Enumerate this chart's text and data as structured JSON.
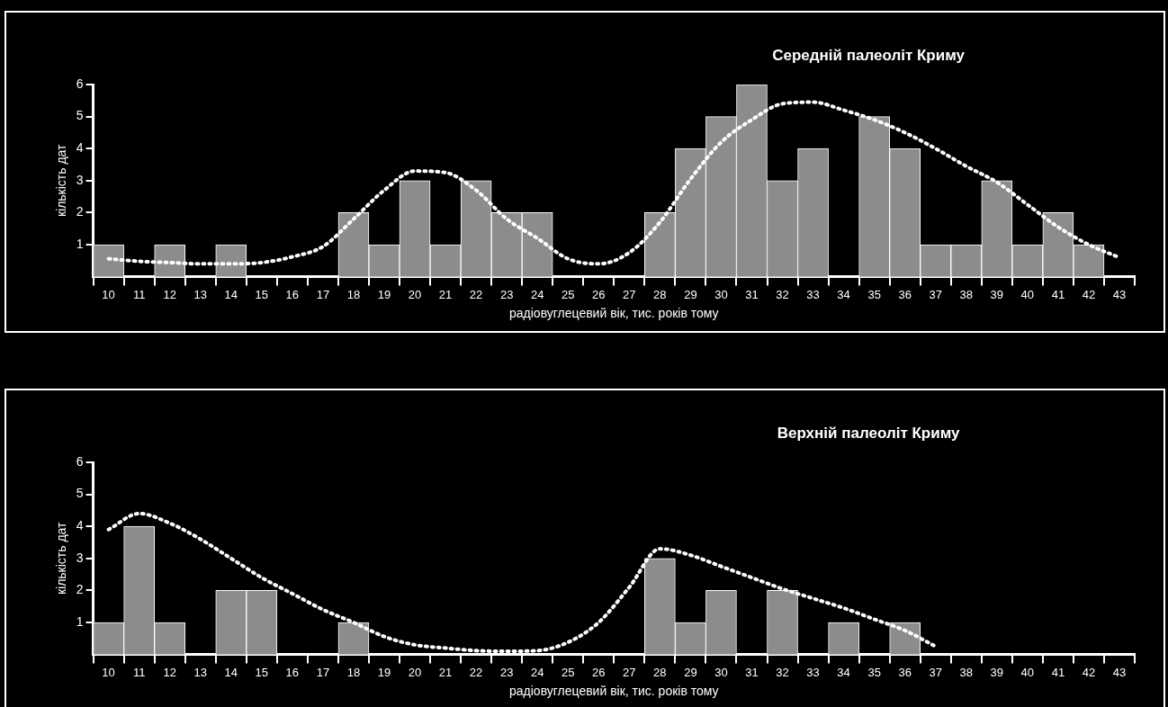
{
  "chart_data": [
    {
      "type": "bar",
      "title": "Середній палеоліт Криму",
      "xlabel": "радіовуглецевий вік, тис. років тому",
      "ylabel": "кількість дат",
      "categories": [
        "10",
        "11",
        "12",
        "13",
        "14",
        "15",
        "16",
        "17",
        "18",
        "19",
        "20",
        "21",
        "22",
        "23",
        "24",
        "25",
        "26",
        "27",
        "28",
        "29",
        "30",
        "31",
        "32",
        "33",
        "34",
        "35",
        "36",
        "37",
        "38",
        "39",
        "40",
        "41",
        "42",
        "43"
      ],
      "series": [
        {
          "color": "#8c8c8c",
          "values": [
            1,
            0,
            1,
            0,
            1,
            0,
            0,
            0,
            2,
            1,
            3,
            1,
            3,
            2,
            2,
            0,
            0,
            0,
            2,
            4,
            5,
            6,
            3,
            4,
            0,
            5,
            4,
            1,
            1,
            3,
            1,
            2,
            1,
            0
          ]
        },
        {
          "type": "line",
          "color": "#ffffff",
          "line_style": "dotted",
          "values": [
            0.56,
            0.48,
            0.44,
            0.4,
            0.4,
            0.44,
            0.62,
            0.94,
            1.8,
            2.7,
            3.3,
            3.25,
            2.7,
            1.8,
            1.2,
            0.56,
            0.4,
            0.75,
            1.7,
            3.05,
            4.2,
            4.9,
            5.4,
            5.45,
            5.2,
            4.9,
            4.5,
            4,
            3.45,
            2.95,
            2.25,
            1.55,
            1,
            0.6
          ]
        }
      ],
      "ylim": [
        0,
        6
      ],
      "yticks": [
        1,
        2,
        3,
        4,
        5,
        6
      ],
      "legend": false,
      "grid": false,
      "marker": "none"
    },
    {
      "type": "bar",
      "title": "Верхній палеоліт Криму",
      "xlabel": "радіовуглецевий вік, тис. років тому",
      "ylabel": "кількість дат",
      "categories": [
        "10",
        "11",
        "12",
        "13",
        "14",
        "15",
        "16",
        "17",
        "18",
        "19",
        "20",
        "21",
        "22",
        "23",
        "24",
        "25",
        "26",
        "27",
        "28",
        "29",
        "30",
        "31",
        "32",
        "33",
        "34",
        "35",
        "36",
        "37",
        "38",
        "39",
        "40",
        "41",
        "42",
        "43"
      ],
      "series": [
        {
          "color": "#8c8c8c",
          "values": [
            1,
            4,
            1,
            0,
            2,
            2,
            0,
            0,
            1,
            0,
            0,
            0,
            0,
            0,
            0,
            0,
            0,
            0,
            3,
            1,
            2,
            0,
            2,
            0,
            1,
            0,
            1,
            0,
            0,
            0,
            0,
            0,
            0,
            0
          ]
        },
        {
          "type": "line",
          "color": "#ffffff",
          "line_style": "dotted",
          "values": [
            3.9,
            4.4,
            4.1,
            3.6,
            3.0,
            2.4,
            1.9,
            1.4,
            1.0,
            0.56,
            0.3,
            0.2,
            0.12,
            0.1,
            0.12,
            0.38,
            1.0,
            2.1,
            3.3,
            3.1,
            2.75,
            2.4,
            2.05,
            1.75,
            1.45,
            1.1,
            0.75,
            0.25,
            null,
            null,
            null,
            null,
            null,
            null
          ]
        }
      ],
      "ylim": [
        0,
        6
      ],
      "yticks": [
        1,
        2,
        3,
        4,
        5,
        6
      ],
      "legend": false,
      "grid": false,
      "marker": "none"
    }
  ]
}
